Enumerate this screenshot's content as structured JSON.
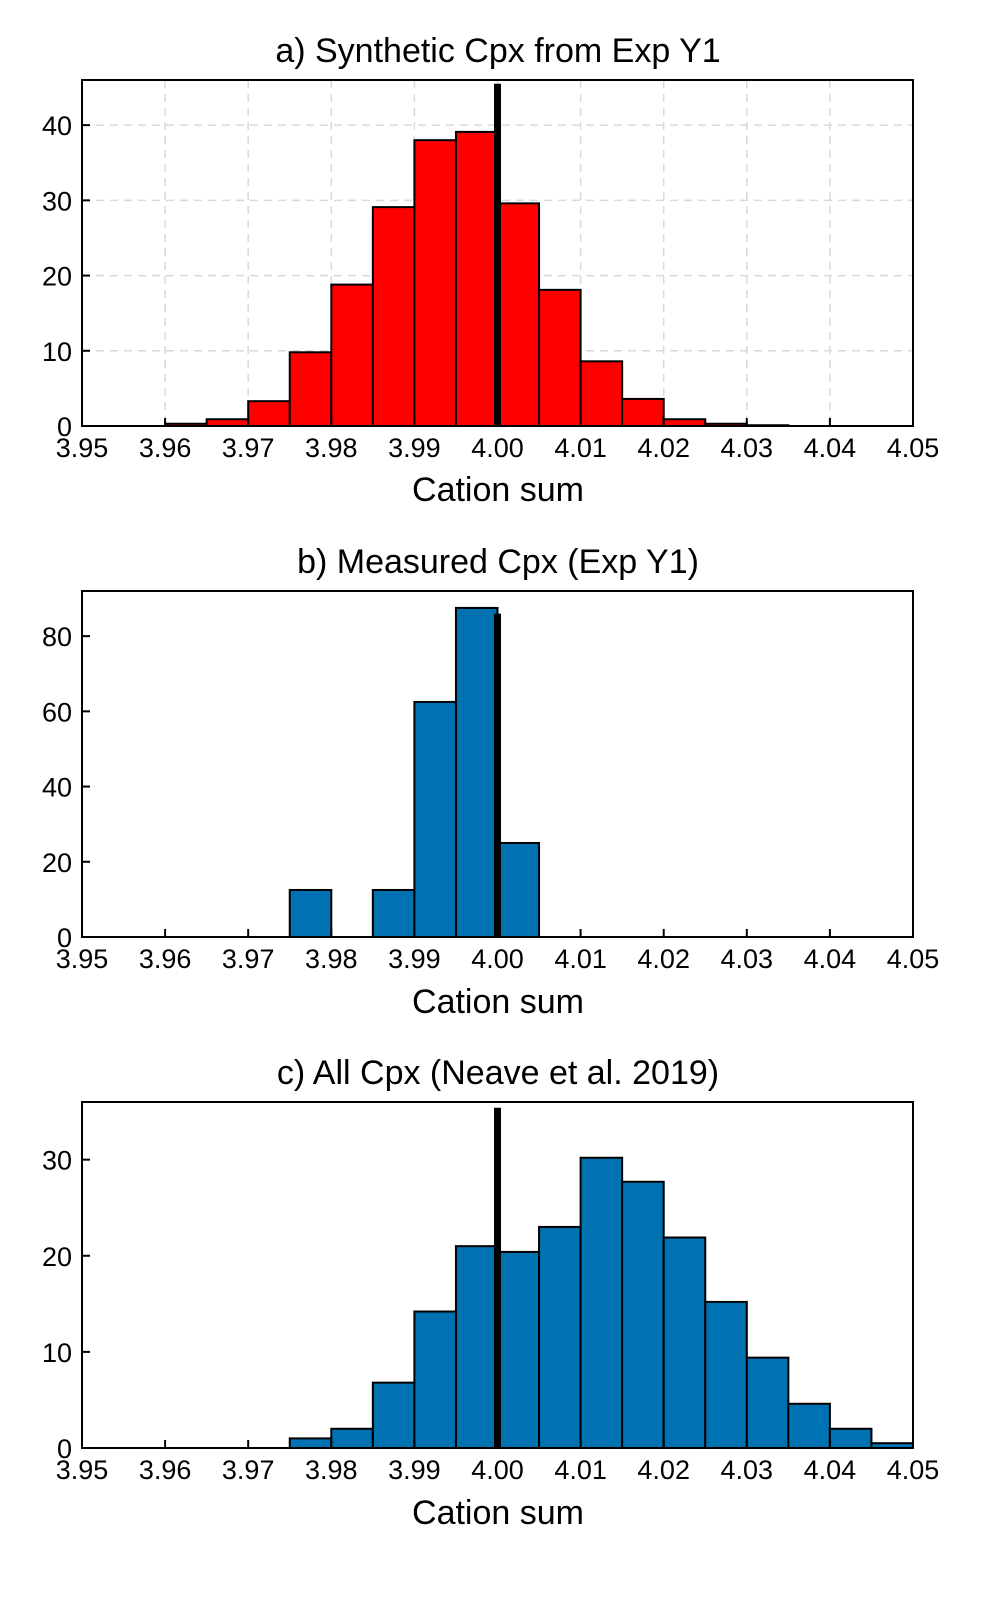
{
  "chart_data": [
    {
      "type": "bar",
      "title": "a) Synthetic Cpx from Exp Y1",
      "xlabel": "Cation sum",
      "ylabel": "",
      "xlim": [
        3.95,
        4.05
      ],
      "ylim": [
        0,
        46
      ],
      "xticks": [
        "3.95",
        "3.96",
        "3.97",
        "3.98",
        "3.99",
        "4.00",
        "4.01",
        "4.02",
        "4.03",
        "4.04",
        "4.05"
      ],
      "yticks": [
        0,
        10,
        20,
        30,
        40
      ],
      "grid": true,
      "bar_color": "#ff0000",
      "bin_width": 0.005,
      "bin_starts": [
        3.96,
        3.965,
        3.97,
        3.975,
        3.98,
        3.985,
        3.99,
        3.995,
        4.0,
        4.005,
        4.01,
        4.015,
        4.02,
        4.025,
        4.03
      ],
      "values": [
        0.3,
        0.9,
        3.3,
        9.8,
        18.8,
        29.1,
        38.0,
        39.1,
        29.6,
        18.1,
        8.6,
        3.6,
        0.9,
        0.3,
        0.1
      ],
      "reference_line_x": 4.0,
      "reference_line_ymax": 45.5
    },
    {
      "type": "bar",
      "title": "b) Measured Cpx (Exp Y1)",
      "xlabel": "Cation sum",
      "ylabel": "",
      "xlim": [
        3.95,
        4.05
      ],
      "ylim": [
        0,
        92
      ],
      "xticks": [
        "3.95",
        "3.96",
        "3.97",
        "3.98",
        "3.99",
        "4.00",
        "4.01",
        "4.02",
        "4.03",
        "4.04",
        "4.05"
      ],
      "yticks": [
        0,
        20,
        40,
        60,
        80
      ],
      "grid": false,
      "bar_color": "#0072b2",
      "bin_width": 0.005,
      "bin_starts": [
        3.975,
        3.985,
        3.99,
        3.995,
        4.0
      ],
      "values": [
        12.5,
        12.5,
        62.5,
        87.5,
        25.0
      ],
      "reference_line_x": 4.0,
      "reference_line_ymax": 86
    },
    {
      "type": "bar",
      "title": "c) All Cpx (Neave et al. 2019)",
      "xlabel": "Cation sum",
      "ylabel": "",
      "xlim": [
        3.95,
        4.05
      ],
      "ylim": [
        0,
        36
      ],
      "xticks": [
        "3.95",
        "3.96",
        "3.97",
        "3.98",
        "3.99",
        "4.00",
        "4.01",
        "4.02",
        "4.03",
        "4.04",
        "4.05"
      ],
      "yticks": [
        0,
        10,
        20,
        30
      ],
      "grid": false,
      "bar_color": "#0072b2",
      "bin_width": 0.005,
      "bin_starts": [
        3.975,
        3.98,
        3.985,
        3.99,
        3.995,
        4.0,
        4.005,
        4.01,
        4.015,
        4.02,
        4.025,
        4.03,
        4.035,
        4.04,
        4.045
      ],
      "values": [
        1.0,
        2.0,
        6.8,
        14.2,
        21.0,
        20.4,
        23.0,
        30.2,
        27.7,
        21.9,
        15.2,
        9.4,
        4.6,
        2.0,
        0.5
      ],
      "reference_line_x": 4.0,
      "reference_line_ymax": 35.4
    }
  ]
}
